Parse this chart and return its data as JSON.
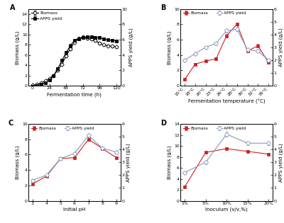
{
  "A": {
    "time": [
      0,
      6,
      12,
      18,
      24,
      30,
      36,
      42,
      48,
      54,
      60,
      66,
      72,
      78,
      84,
      90,
      96,
      102,
      108,
      114,
      120
    ],
    "biomass": [
      0.1,
      0.3,
      0.5,
      0.9,
      1.4,
      2.0,
      3.0,
      4.2,
      5.8,
      7.2,
      8.5,
      9.2,
      9.5,
      9.3,
      9.1,
      8.8,
      8.3,
      8.0,
      7.8,
      7.7,
      7.6
    ],
    "biomass_err": [
      0.05,
      0.05,
      0.08,
      0.1,
      0.12,
      0.15,
      0.18,
      0.2,
      0.22,
      0.25,
      0.25,
      0.25,
      0.25,
      0.25,
      0.25,
      0.25,
      0.25,
      0.22,
      0.2,
      0.2,
      0.2
    ],
    "apps": [
      -0.1,
      0.0,
      0.15,
      0.35,
      0.7,
      1.3,
      2.2,
      3.3,
      4.3,
      5.2,
      5.9,
      6.1,
      6.3,
      6.35,
      6.35,
      6.3,
      6.25,
      6.1,
      5.95,
      5.9,
      5.85
    ],
    "apps_err": [
      0.05,
      0.05,
      0.08,
      0.1,
      0.1,
      0.12,
      0.15,
      0.18,
      0.2,
      0.2,
      0.2,
      0.2,
      0.2,
      0.2,
      0.2,
      0.2,
      0.2,
      0.2,
      0.18,
      0.18,
      0.18
    ],
    "biomass_ylim": [
      0,
      15
    ],
    "apps_ylim": [
      0,
      10
    ],
    "xticks": [
      0,
      24,
      48,
      72,
      96,
      120
    ],
    "xlabel": "Fermentation time (h)",
    "ylabel_left": "Biomass (g/L)",
    "ylabel_right": "APPS yield (g/L)",
    "label_biomass": "Biomass",
    "label_apps": "APPS yield"
  },
  "B": {
    "temps": [
      "15°C",
      "18°C",
      "20°C",
      "23°C",
      "26°C",
      "28°C",
      "30°C",
      "32°C",
      "35°C"
    ],
    "biomass": [
      0.8,
      2.8,
      3.2,
      3.5,
      6.5,
      8.0,
      4.5,
      5.2,
      3.0
    ],
    "biomass_err": [
      0.1,
      0.15,
      0.15,
      0.15,
      0.2,
      0.2,
      0.2,
      0.2,
      0.15
    ],
    "apps": [
      2.0,
      2.5,
      3.0,
      3.3,
      4.3,
      4.4,
      2.8,
      2.7,
      2.0
    ],
    "apps_err": [
      0.1,
      0.1,
      0.1,
      0.12,
      0.15,
      0.15,
      0.12,
      0.12,
      0.1
    ],
    "biomass_ylim": [
      0,
      10
    ],
    "apps_ylim": [
      0,
      6
    ],
    "xlabel": "Fermentation temperature (°C)",
    "ylabel_left": "Biomass (g/L)",
    "ylabel_right": "APPS yield (g/L)",
    "label_biomass": "Biomass",
    "label_apps": "APPS yield"
  },
  "C": {
    "ph": [
      "3",
      "4",
      "5",
      "6",
      "7",
      "8",
      "9"
    ],
    "biomass": [
      2.2,
      3.2,
      5.5,
      5.6,
      8.0,
      6.8,
      5.6
    ],
    "biomass_err": [
      0.15,
      0.15,
      0.15,
      0.15,
      0.2,
      0.15,
      0.15
    ],
    "apps": [
      1.6,
      2.0,
      3.3,
      3.7,
      5.1,
      4.1,
      3.8
    ],
    "apps_err": [
      0.1,
      0.1,
      0.1,
      0.1,
      0.15,
      0.1,
      0.1
    ],
    "biomass_ylim": [
      0,
      10
    ],
    "apps_ylim": [
      0,
      6
    ],
    "xlabel": "Initial pH",
    "ylabel_left": "Biomass (g/L)",
    "ylabel_right": "APPS yield (g/L)",
    "label_biomass": "Biomass",
    "label_apps": "APPS yield"
  },
  "D": {
    "inoculum": [
      "1%",
      "5%",
      "10%",
      "15%",
      "20%"
    ],
    "biomass": [
      2.5,
      8.8,
      9.5,
      9.0,
      8.5
    ],
    "biomass_err": [
      0.15,
      0.2,
      0.2,
      0.2,
      0.2
    ],
    "apps": [
      2.2,
      3.0,
      5.2,
      4.5,
      4.5
    ],
    "apps_err": [
      0.1,
      0.15,
      0.2,
      0.15,
      0.15
    ],
    "biomass_ylim": [
      0,
      14
    ],
    "apps_ylim": [
      0,
      6
    ],
    "xlabel": "Inoculum (v/v,%)",
    "ylabel_left": "Biomass (g/L)",
    "ylabel_right": "APPS yield (g/L)",
    "label_biomass": "Biomass",
    "label_apps": "APPS yield"
  },
  "style": {
    "biomass_color_A": "black",
    "apps_color_A": "black",
    "biomass_color_BCD": "#cc2222",
    "apps_color_BCD": "#8899bb",
    "linewidth": 0.8,
    "markersize_A": 2.8,
    "markersize_BCD": 3.2,
    "spine_linewidth": 0.6,
    "tick_labelsize": 4.5,
    "axis_labelsize": 5.0,
    "legend_fontsize": 4.2,
    "panel_label_size": 7,
    "elinewidth": 0.5,
    "capsize": 1.2
  }
}
